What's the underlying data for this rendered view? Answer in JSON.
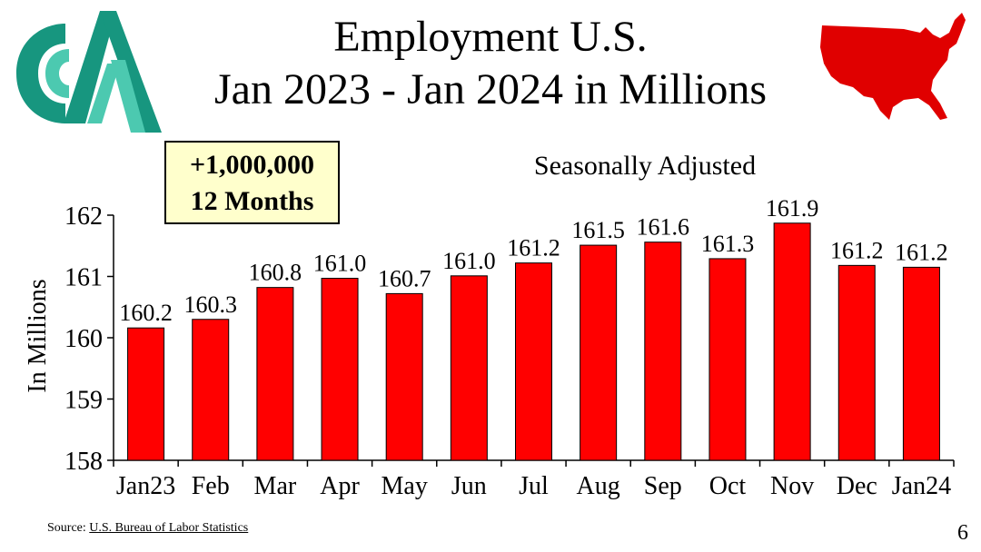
{
  "title_line1": "Employment U.S.",
  "title_line2": "Jan 2023 - Jan 2024 in Millions",
  "badge": {
    "line1": "+1,000,000",
    "line2": "12 Months"
  },
  "source": {
    "prefix": "Source: ",
    "link": "U.S. Bureau of Labor Statistics"
  },
  "page_number": "6",
  "colors": {
    "bar": "#ff0000",
    "logo": "#17967f",
    "logo_light": "#4cc9b0",
    "map": "#e00000"
  },
  "icons": {
    "logo": "company-logo",
    "map": "us-map-icon"
  },
  "chart_data": {
    "type": "bar",
    "subtitle": "Seasonally Adjusted",
    "ylabel": "In Millions",
    "xlabel": "",
    "categories": [
      "Jan23",
      "Feb",
      "Mar",
      "Apr",
      "May",
      "Jun",
      "Jul",
      "Aug",
      "Sep",
      "Oct",
      "Nov",
      "Dec",
      "Jan24"
    ],
    "values": [
      160.16,
      160.3,
      160.82,
      160.97,
      160.72,
      161.01,
      161.22,
      161.51,
      161.56,
      161.29,
      161.87,
      161.18,
      161.15
    ],
    "labels": [
      "160.2",
      "160.3",
      "160.8",
      "161.0",
      "160.7",
      "161.0",
      "161.2",
      "161.5",
      "161.6",
      "161.3",
      "161.9",
      "161.2",
      "161.2"
    ],
    "ylim": [
      158,
      162
    ],
    "yticks": [
      158,
      159,
      160,
      161,
      162
    ],
    "grid": false,
    "legend": "none"
  }
}
